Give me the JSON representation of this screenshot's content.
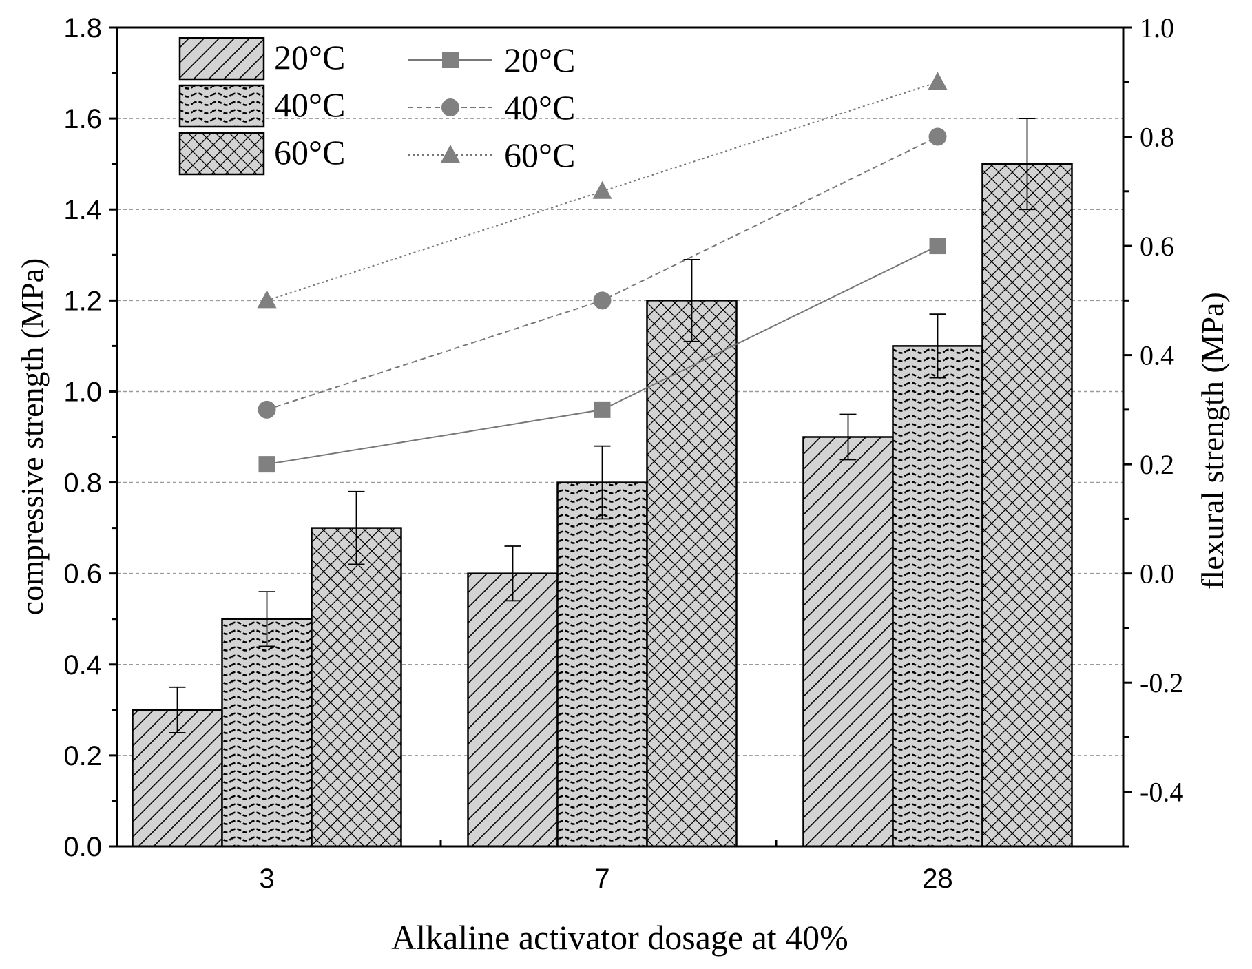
{
  "chart_data": {
    "type": "bar",
    "title": "",
    "xlabel": "Alkaline activator dosage at 40%",
    "ylabel": "compressive strength (MPa)",
    "y2label": "flexural strength (MPa)",
    "categories": [
      "3",
      "7",
      "28"
    ],
    "ylim": [
      0,
      1.8
    ],
    "y_ticks": [
      "0.0",
      "0.2",
      "0.4",
      "0.6",
      "0.8",
      "1.0",
      "1.2",
      "1.4",
      "1.6",
      "1.8"
    ],
    "y2lim": [
      -0.5,
      1.0
    ],
    "y2_ticks": [
      "-0.4",
      "-0.2",
      "0.0",
      "0.2",
      "0.4",
      "0.6",
      "0.8",
      "1.0"
    ],
    "grid": true,
    "legend_position": "top-left",
    "bar_series": [
      {
        "name": "20°C",
        "pattern": "diagonal",
        "values": [
          0.3,
          0.6,
          0.9
        ],
        "errors": [
          0.05,
          0.06,
          0.05
        ]
      },
      {
        "name": "40°C",
        "pattern": "wave",
        "values": [
          0.5,
          0.8,
          1.1
        ],
        "errors": [
          0.06,
          0.08,
          0.07
        ]
      },
      {
        "name": "60°C",
        "pattern": "crosshatch",
        "values": [
          0.7,
          1.2,
          1.5
        ],
        "errors": [
          0.08,
          0.09,
          0.1
        ]
      }
    ],
    "line_series": [
      {
        "name": "20°C",
        "marker": "square",
        "dash": "solid",
        "axis": "right",
        "values": [
          0.2,
          0.3,
          0.6
        ]
      },
      {
        "name": "40°C",
        "marker": "circle",
        "dash": "dashed",
        "axis": "right",
        "values": [
          0.3,
          0.5,
          0.8
        ]
      },
      {
        "name": "60°C",
        "marker": "triangle",
        "dash": "dotted",
        "axis": "right",
        "values": [
          0.5,
          0.7,
          0.9
        ]
      }
    ],
    "colors": {
      "bar_fill": "#d3d3d3",
      "bar_stroke": "#000000",
      "line": "#777777",
      "marker": "#808080"
    }
  }
}
